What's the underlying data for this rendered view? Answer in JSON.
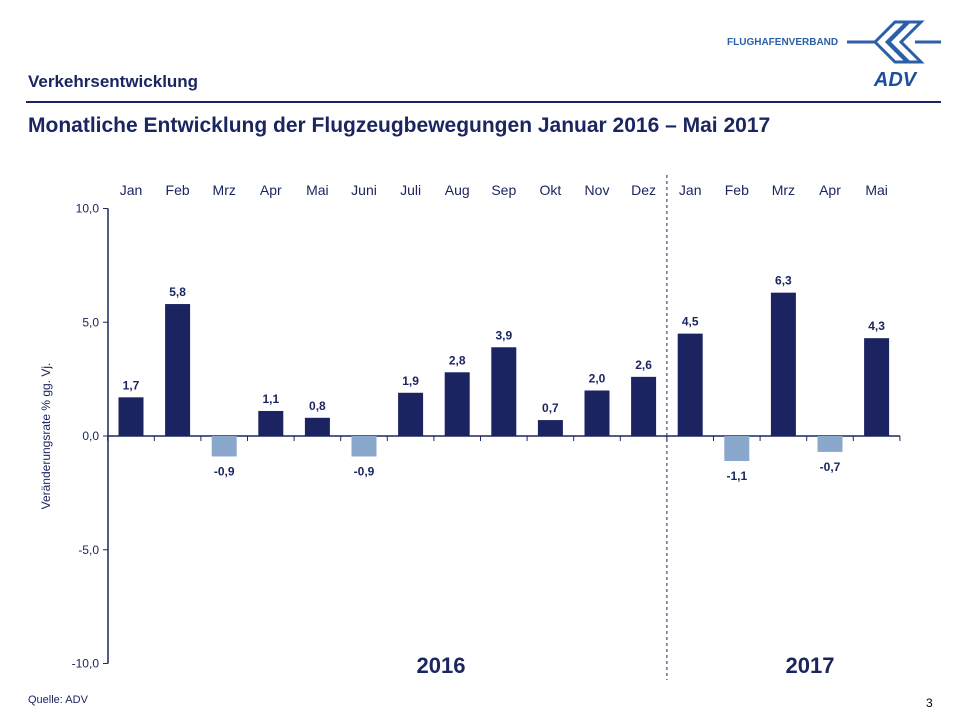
{
  "header": {
    "section": "Verkehrsentwicklung",
    "title": "Monatliche Entwicklung der Flugzeugbewegungen Januar 2016 – Mai 2017",
    "brand": "FLUGHAFENVERBAND",
    "logo_text": "ADV"
  },
  "footer": {
    "source": "Quelle: ADV",
    "page": "3"
  },
  "colors": {
    "positive": "#1b2360",
    "negative": "#8aa7cc",
    "text": "#1b2660"
  },
  "chart_data": {
    "type": "bar",
    "title": "",
    "ylabel": "Veränderungsrate  % gg. Vj.",
    "ylim": [
      -10,
      10
    ],
    "yticks": [
      "10,0",
      "5,0",
      "0,0",
      "-5,0",
      "-10,0"
    ],
    "categories": [
      "Jan",
      "Feb",
      "Mrz",
      "Apr",
      "Mai",
      "Juni",
      "Juli",
      "Aug",
      "Sep",
      "Okt",
      "Nov",
      "Dez",
      "Jan",
      "Feb",
      "Mrz",
      "Apr",
      "Mai"
    ],
    "values": [
      1.7,
      5.8,
      -0.9,
      1.1,
      0.8,
      -0.9,
      1.9,
      2.8,
      3.9,
      0.7,
      2.0,
      2.6,
      4.5,
      -1.1,
      6.3,
      -0.7,
      4.3
    ],
    "data_labels": [
      "1,7",
      "5,8",
      "-0,9",
      "1,1",
      "0,8",
      "-0,9",
      "1,9",
      "2,8",
      "3,9",
      "0,7",
      "2,0",
      "2,6",
      "4,5",
      "-1,1",
      "6,3",
      "-0,7",
      "4,3"
    ],
    "groups": [
      "2016",
      "2017"
    ],
    "grid": false,
    "legend": "none"
  }
}
